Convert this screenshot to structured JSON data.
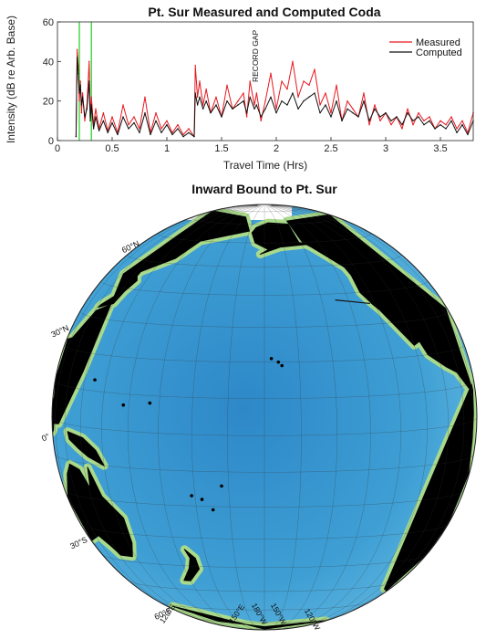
{
  "chart_data": [
    {
      "type": "line",
      "title": "Pt. Sur Measured and Computed Coda",
      "xlabel": "Travel Time (Hrs)",
      "ylabel": "Intensity (dB re Arb. Base)",
      "xlim": [
        0,
        3.8
      ],
      "ylim": [
        0,
        60
      ],
      "x_ticks": [
        "0",
        "0.5",
        "1",
        "1.5",
        "2",
        "2.5",
        "3",
        "3.5"
      ],
      "y_ticks": [
        "0",
        "20",
        "40",
        "60"
      ],
      "grid": false,
      "legend_position": "top-right",
      "annotation": "RECORD GAP",
      "annotation_x": 1.8,
      "vertical_markers_x": [
        0.2,
        0.31
      ],
      "vertical_marker_color": "#22cc22",
      "series": [
        {
          "name": "Measured",
          "color": "#e8161c",
          "x": [
            0.17,
            0.18,
            0.19,
            0.2,
            0.21,
            0.22,
            0.23,
            0.25,
            0.27,
            0.29,
            0.3,
            0.31,
            0.33,
            0.35,
            0.38,
            0.42,
            0.46,
            0.5,
            0.55,
            0.6,
            0.65,
            0.7,
            0.75,
            0.8,
            0.85,
            0.9,
            0.95,
            1.0,
            1.05,
            1.1,
            1.15,
            1.2,
            1.25,
            1.26,
            1.28,
            1.3,
            1.33,
            1.36,
            1.4,
            1.45,
            1.5,
            1.55,
            1.6,
            1.65,
            1.7,
            1.73,
            1.76,
            1.8,
            1.82,
            1.86,
            1.9,
            1.95,
            2.0,
            2.05,
            2.1,
            2.15,
            2.2,
            2.25,
            2.3,
            2.35,
            2.4,
            2.45,
            2.5,
            2.55,
            2.6,
            2.65,
            2.7,
            2.75,
            2.8,
            2.85,
            2.9,
            2.95,
            3.0,
            3.05,
            3.1,
            3.15,
            3.2,
            3.25,
            3.3,
            3.35,
            3.4,
            3.45,
            3.5,
            3.55,
            3.6,
            3.65,
            3.7,
            3.75,
            3.8
          ],
          "y": [
            2,
            46,
            38,
            20,
            30,
            14,
            24,
            10,
            18,
            40,
            12,
            22,
            8,
            16,
            6,
            14,
            5,
            12,
            4,
            18,
            8,
            12,
            6,
            22,
            4,
            14,
            6,
            10,
            4,
            8,
            3,
            6,
            2,
            38,
            22,
            30,
            18,
            26,
            14,
            22,
            12,
            28,
            16,
            20,
            24,
            12,
            30,
            18,
            24,
            10,
            20,
            34,
            16,
            30,
            26,
            40,
            22,
            30,
            28,
            36,
            18,
            24,
            14,
            28,
            10,
            20,
            16,
            12,
            24,
            8,
            18,
            10,
            14,
            8,
            12,
            6,
            16,
            8,
            14,
            10,
            12,
            6,
            10,
            8,
            12,
            6,
            10,
            4,
            14
          ]
        },
        {
          "name": "Computed",
          "color": "#111111",
          "x": [
            0.17,
            0.18,
            0.19,
            0.2,
            0.21,
            0.22,
            0.23,
            0.25,
            0.27,
            0.29,
            0.3,
            0.31,
            0.33,
            0.35,
            0.38,
            0.42,
            0.46,
            0.5,
            0.55,
            0.6,
            0.65,
            0.7,
            0.75,
            0.8,
            0.85,
            0.9,
            0.95,
            1.0,
            1.05,
            1.1,
            1.15,
            1.2,
            1.25,
            1.26,
            1.28,
            1.3,
            1.33,
            1.36,
            1.4,
            1.45,
            1.5,
            1.55,
            1.6,
            1.65,
            1.7,
            1.73,
            1.76,
            1.8,
            1.82,
            1.86,
            1.9,
            1.95,
            2.0,
            2.05,
            2.1,
            2.15,
            2.2,
            2.25,
            2.3,
            2.35,
            2.4,
            2.45,
            2.5,
            2.55,
            2.6,
            2.65,
            2.7,
            2.75,
            2.8,
            2.85,
            2.9,
            2.95,
            3.0,
            3.05,
            3.1,
            3.15,
            3.2,
            3.25,
            3.3,
            3.35,
            3.4,
            3.45,
            3.5,
            3.55,
            3.6,
            3.65,
            3.7,
            3.75,
            3.8
          ],
          "y": [
            2,
            42,
            34,
            24,
            28,
            18,
            22,
            12,
            16,
            30,
            10,
            18,
            6,
            12,
            5,
            10,
            4,
            9,
            3,
            12,
            6,
            9,
            4,
            14,
            3,
            10,
            4,
            8,
            3,
            6,
            2,
            4,
            2,
            24,
            18,
            22,
            16,
            20,
            14,
            18,
            12,
            20,
            16,
            18,
            20,
            14,
            22,
            16,
            18,
            12,
            16,
            22,
            14,
            20,
            18,
            24,
            16,
            20,
            22,
            24,
            14,
            18,
            12,
            20,
            10,
            16,
            14,
            12,
            20,
            10,
            16,
            12,
            14,
            10,
            12,
            8,
            14,
            10,
            12,
            8,
            10,
            6,
            8,
            6,
            10,
            4,
            8,
            3,
            10
          ]
        }
      ]
    },
    {
      "type": "map",
      "title": "Inward Bound to Pt. Sur",
      "projection": "orthographic",
      "center": {
        "lat": 5,
        "lon": -160
      },
      "latitude_labels": [
        "60°N",
        "30°N",
        "0°",
        "30°S",
        "60°S"
      ],
      "latitude_values": [
        60,
        30,
        0,
        -30,
        -60
      ],
      "longitude_labels": [
        "120°E",
        "150°E",
        "180°W",
        "150°W",
        "120°W"
      ],
      "colors": {
        "land": "#000000",
        "ocean": "#3f9fd4",
        "ocean_deep": "#2e88c8",
        "shelf": "#a9d98b"
      }
    }
  ]
}
